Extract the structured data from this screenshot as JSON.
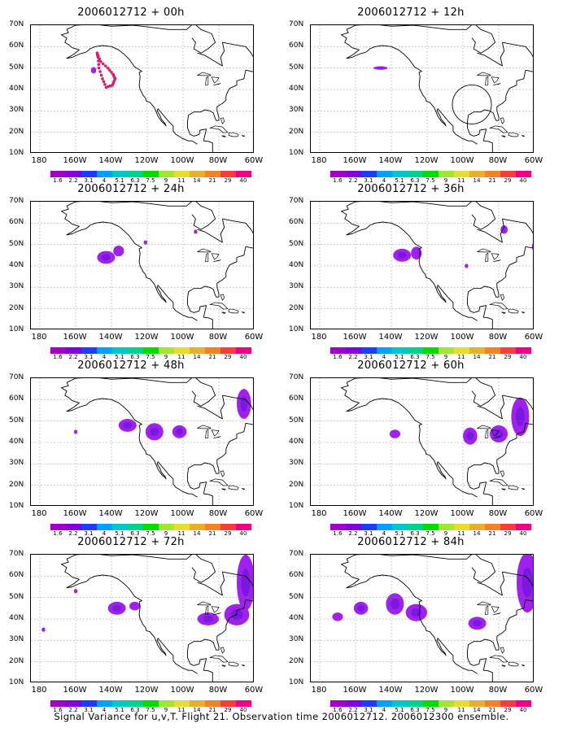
{
  "panels": [
    {
      "title": "2006012712 + 00h",
      "blobs": [
        [
          -150,
          49,
          1.5,
          1.5
        ]
      ],
      "markers": true,
      "circle": false
    },
    {
      "title": "2006012712 + 12h",
      "blobs": [
        [
          -146,
          50,
          4,
          0.8
        ]
      ],
      "markers": false,
      "circle": true
    },
    {
      "title": "2006012712 + 24h",
      "blobs": [
        [
          -143,
          44,
          5,
          3
        ],
        [
          -136,
          47,
          3,
          2.5
        ],
        [
          -121,
          51,
          1,
          1
        ],
        [
          -93,
          56,
          1,
          1
        ]
      ],
      "markers": false,
      "circle": false
    },
    {
      "title": "2006012712 + 36h",
      "blobs": [
        [
          -134,
          45,
          5,
          3
        ],
        [
          -126,
          46,
          3,
          3
        ],
        [
          -98,
          40,
          1,
          1
        ],
        [
          -77,
          57,
          2,
          2
        ],
        [
          -60,
          49,
          1.5,
          2
        ]
      ],
      "markers": false,
      "circle": false
    },
    {
      "title": "2006012712 + 48h",
      "blobs": [
        [
          -160,
          45,
          1,
          1
        ],
        [
          -131,
          48,
          5,
          3
        ],
        [
          -116,
          45,
          5,
          4
        ],
        [
          -102,
          45,
          4,
          3
        ],
        [
          -66,
          58,
          4,
          7
        ]
      ],
      "markers": false,
      "circle": false
    },
    {
      "title": "2006012712 + 60h",
      "blobs": [
        [
          -138,
          44,
          3,
          2
        ],
        [
          -96,
          43,
          4,
          4
        ],
        [
          -80,
          44,
          5,
          4
        ],
        [
          -68,
          52,
          5,
          9
        ]
      ],
      "markers": false,
      "circle": false
    },
    {
      "title": "2006012712 + 72h",
      "blobs": [
        [
          -178,
          35,
          1,
          1
        ],
        [
          -160,
          53,
          1,
          1
        ],
        [
          -137,
          45,
          5,
          3
        ],
        [
          -127,
          46,
          3,
          2
        ],
        [
          -86,
          40,
          6,
          3
        ],
        [
          -70,
          42,
          7,
          5
        ],
        [
          -65,
          57,
          5,
          13
        ]
      ],
      "markers": false,
      "circle": false
    },
    {
      "title": "2006012712 + 84h",
      "blobs": [
        [
          -170,
          41,
          3,
          2
        ],
        [
          -157,
          45,
          4,
          3
        ],
        [
          -138,
          47,
          5,
          5
        ],
        [
          -126,
          43,
          6,
          4
        ],
        [
          -92,
          38,
          5,
          3
        ],
        [
          -64,
          57,
          6,
          14
        ]
      ],
      "markers": false,
      "circle": false
    }
  ],
  "lat_labels": [
    "70N",
    "60N",
    "50N",
    "40N",
    "30N",
    "20N",
    "10N"
  ],
  "lon_labels": [
    "180",
    "160W",
    "140W",
    "120W",
    "100W",
    "80W",
    "60W"
  ],
  "colorbar": {
    "colors": [
      "#a000c8",
      "#8200dc",
      "#1e3cff",
      "#00a0ff",
      "#00c8c8",
      "#00d28c",
      "#00dc00",
      "#a0e632",
      "#e6dc32",
      "#e6af2d",
      "#f08228",
      "#fa3c3c",
      "#f00082"
    ],
    "labels": [
      "1.6",
      "2.2",
      "3.1",
      "4",
      "5.1",
      "6.3",
      "7.5",
      "9",
      "11",
      "14",
      "21",
      "29",
      "40"
    ]
  },
  "signal_color": "#a020f0",
  "marker_color": "#e01a6a",
  "footer": "Signal Variance for u,v,T. Flight 21. Observation time 2006012712. 2006012300 ensemble."
}
